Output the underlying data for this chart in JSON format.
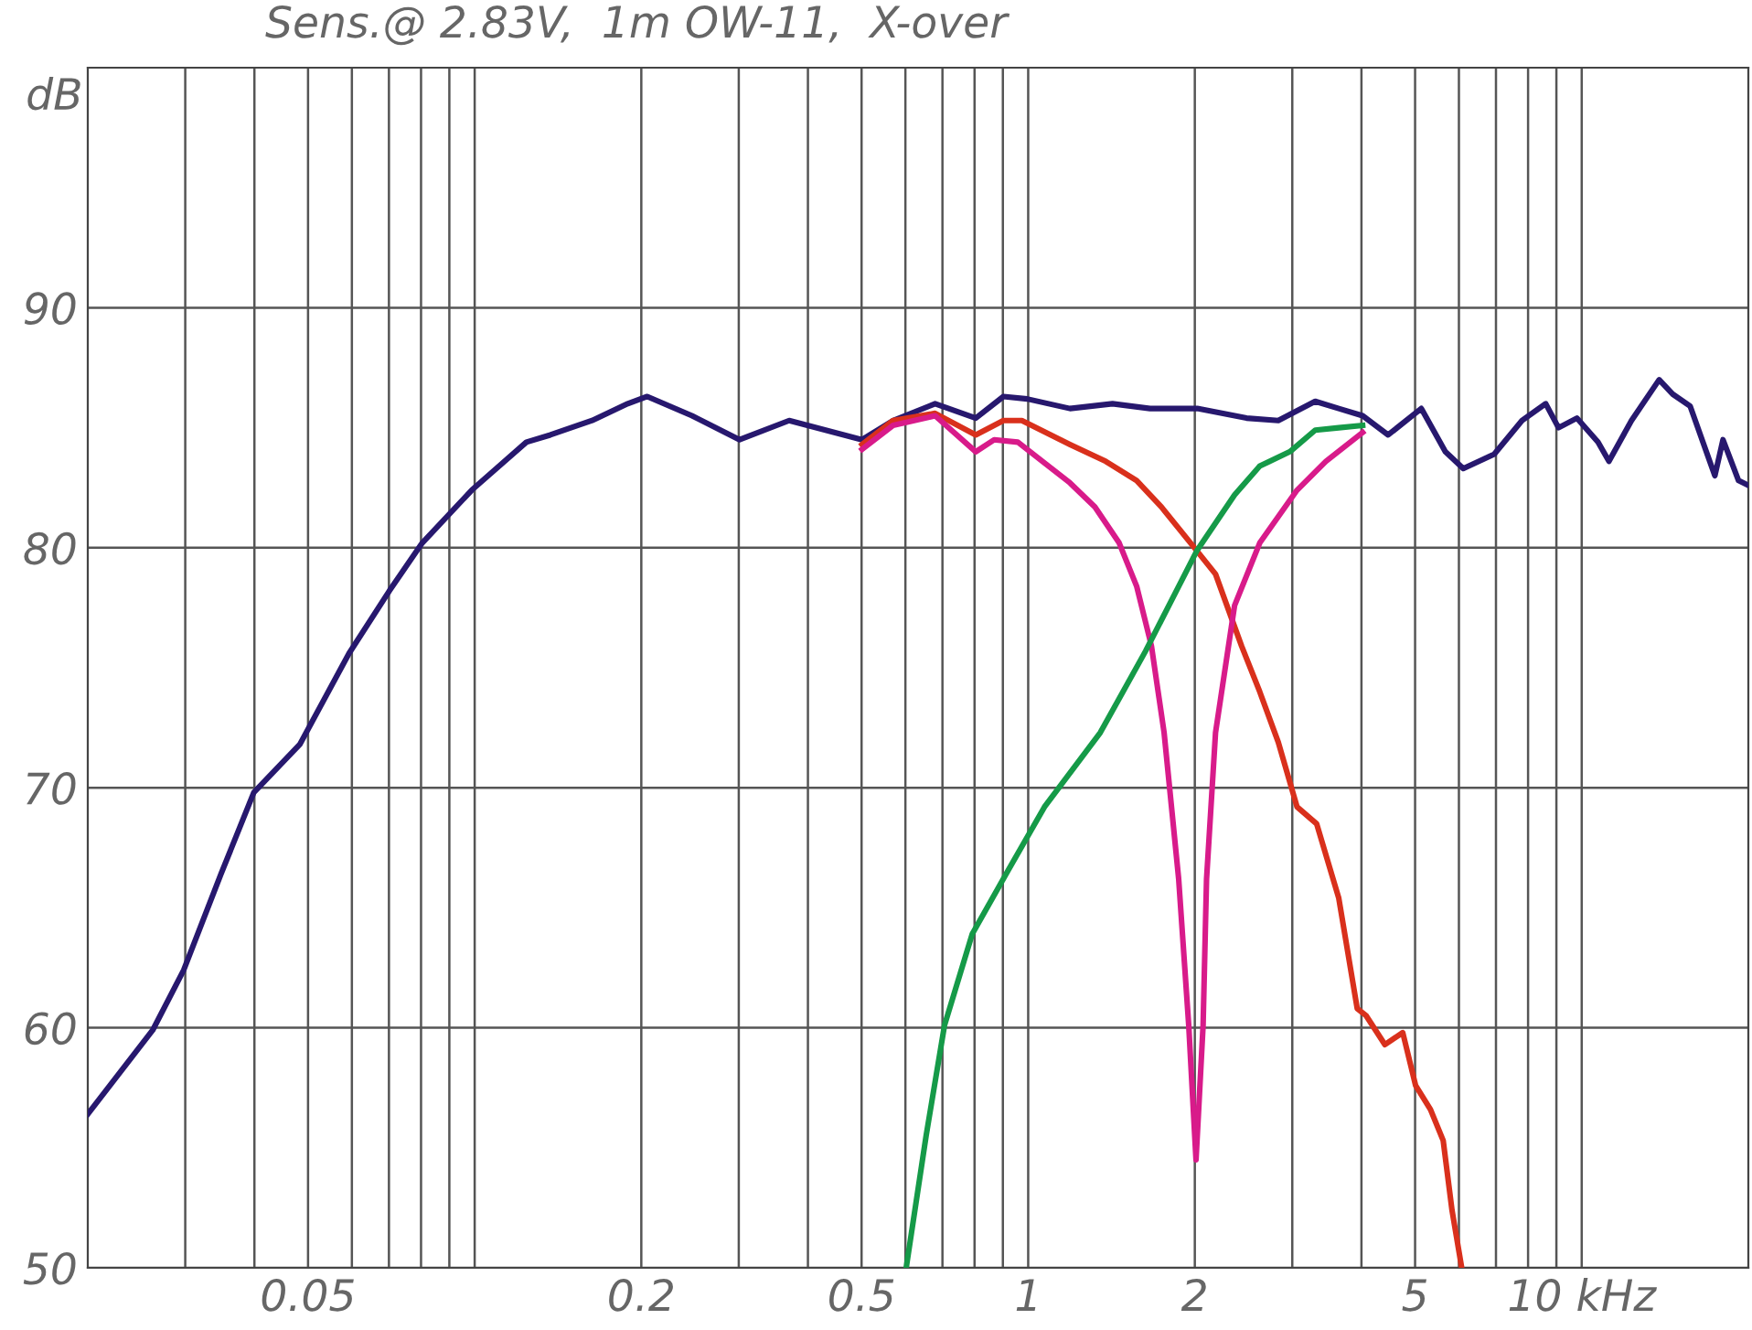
{
  "chart_data": {
    "type": "line",
    "title": "Sens.@ 2.83V,  1m OW-11,  X-over",
    "ylabel": "dB",
    "xlim": [
      0.02,
      20
    ],
    "ylim": [
      50,
      100
    ],
    "log": "x",
    "grid": true,
    "marker": "none",
    "line_style": "solid",
    "xticks": [
      {
        "value": 0.03,
        "label": null
      },
      {
        "value": 0.04,
        "label": null
      },
      0.05,
      {
        "value": 0.06,
        "label": null
      },
      {
        "value": 0.07,
        "label": null
      },
      {
        "value": 0.08,
        "label": null
      },
      {
        "value": 0.09,
        "label": null
      },
      {
        "value": 0.1,
        "label": null
      },
      0.2,
      {
        "value": 0.3,
        "label": null
      },
      {
        "value": 0.4,
        "label": null
      },
      0.5,
      {
        "value": 0.6,
        "label": null
      },
      {
        "value": 0.7,
        "label": null
      },
      {
        "value": 0.8,
        "label": null
      },
      {
        "value": 0.9,
        "label": null
      },
      1,
      2,
      {
        "value": 3,
        "label": null
      },
      {
        "value": 4,
        "label": null
      },
      5,
      {
        "value": 6,
        "label": null
      },
      {
        "value": 7,
        "label": null
      },
      {
        "value": 8,
        "label": null
      },
      {
        "value": 9,
        "label": null
      },
      {
        "value": 10,
        "label": "10 kHz"
      }
    ],
    "yticks": [
      50,
      60,
      70,
      80,
      90
    ],
    "series": [
      {
        "color": "#27186e",
        "x": [
          0.02,
          0.0262,
          0.0298,
          0.0348,
          0.0399,
          0.0483,
          0.0593,
          0.0701,
          0.0804,
          0.0988,
          0.124,
          0.137,
          0.163,
          0.189,
          0.205,
          0.247,
          0.301,
          0.37,
          0.501,
          0.57,
          0.679,
          0.804,
          0.902,
          0.996,
          1.19,
          1.42,
          1.66,
          2.02,
          2.48,
          2.83,
          3.3,
          3.64,
          4.02,
          4.47,
          5.13,
          5.67,
          6.11,
          6.95,
          7.8,
          8.61,
          9.08,
          9.8,
          10.7,
          11.2,
          12.3,
          13.8,
          14.6,
          15.7,
          17.4,
          18.0,
          19.2,
          20
        ],
        "values": [
          56.4,
          59.9,
          62.4,
          66.4,
          69.8,
          71.8,
          75.6,
          78.2,
          80.2,
          82.4,
          84.4,
          84.7,
          85.3,
          86.0,
          86.3,
          85.5,
          84.5,
          85.3,
          84.5,
          85.3,
          86.0,
          85.4,
          86.3,
          86.2,
          85.8,
          86.0,
          85.8,
          85.8,
          85.4,
          85.3,
          86.1,
          85.8,
          85.5,
          84.7,
          85.8,
          84.0,
          83.3,
          83.9,
          85.3,
          86.0,
          85.0,
          85.4,
          84.4,
          83.6,
          85.3,
          87.0,
          86.4,
          85.9,
          83.0,
          84.5,
          82.8,
          82.6
        ]
      },
      {
        "color": "#d9301c",
        "x": [
          0.501,
          0.57,
          0.679,
          0.804,
          0.902,
          0.974,
          1.19,
          1.38,
          1.57,
          1.74,
          1.98,
          2.18,
          2.43,
          2.62,
          2.83,
          3.06,
          3.32,
          3.64,
          3.93,
          4.08,
          4.41,
          4.75,
          5.01,
          5.33,
          5.62,
          5.83,
          6.07
        ],
        "values": [
          84.3,
          85.3,
          85.6,
          84.7,
          85.3,
          85.3,
          84.3,
          83.6,
          82.8,
          81.7,
          80.1,
          78.9,
          75.9,
          74.0,
          71.9,
          69.2,
          68.5,
          65.4,
          60.8,
          60.5,
          59.3,
          59.8,
          57.6,
          56.6,
          55.3,
          52.4,
          50.0
        ]
      },
      {
        "color": "#d81b8a",
        "x": [
          0.501,
          0.57,
          0.679,
          0.804,
          0.868,
          0.958,
          1.19,
          1.32,
          1.46,
          1.57,
          1.67,
          1.76,
          1.87,
          1.95,
          2.01,
          2.07,
          2.1,
          2.18,
          2.36,
          2.62,
          3.06,
          3.45,
          4.02
        ],
        "values": [
          84.1,
          85.1,
          85.5,
          84.0,
          84.5,
          84.4,
          82.7,
          81.7,
          80.2,
          78.4,
          75.9,
          72.3,
          66.2,
          60.1,
          54.5,
          60.1,
          66.2,
          72.3,
          77.6,
          80.2,
          82.4,
          83.6,
          84.8
        ]
      },
      {
        "color": "#159a48",
        "x": [
          0.602,
          0.654,
          0.706,
          0.792,
          0.922,
          1.07,
          1.35,
          1.63,
          2.02,
          2.36,
          2.62,
          2.97,
          3.3,
          3.64,
          4.02
        ],
        "values": [
          50.0,
          55.5,
          60.1,
          63.9,
          66.6,
          69.2,
          72.3,
          75.7,
          79.9,
          82.2,
          83.4,
          84.0,
          84.9,
          85.0,
          85.1
        ]
      }
    ]
  }
}
